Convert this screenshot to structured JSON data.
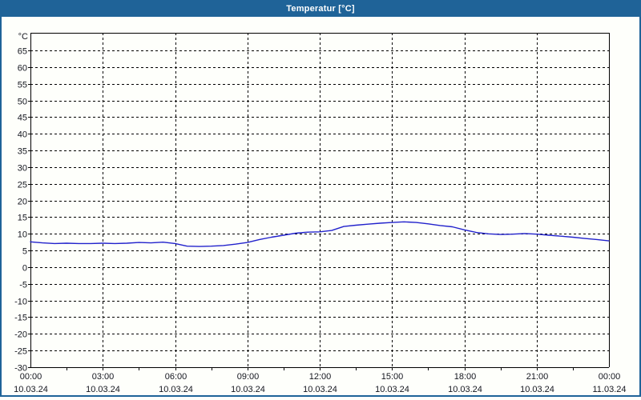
{
  "window": {
    "title": "Temperatur [°C]",
    "colors": {
      "titlebar": "#1F6398",
      "border": "#1F6398",
      "background": "#FEFFFB",
      "grid": "#000000",
      "axis": "#000000",
      "label": "#14161F",
      "line": "#2222CC"
    }
  },
  "chart_data": {
    "type": "line",
    "title": "Temperatur [°C]",
    "ylabel_unit": "°C",
    "ylim": [
      -30,
      70.3
    ],
    "y_tick_step": 5,
    "y_ticks": [
      65,
      60,
      55,
      50,
      45,
      40,
      35,
      30,
      25,
      20,
      15,
      10,
      5,
      0,
      -5,
      -10,
      -15,
      -20,
      -25,
      -30
    ],
    "x_hours_range": [
      0,
      24
    ],
    "x_minor_step_hours": 1.5,
    "grid": "dashed",
    "x_major_ticks": [
      {
        "hour": 0,
        "time": "00:00",
        "date": "10.03.24"
      },
      {
        "hour": 3,
        "time": "03:00",
        "date": "10.03.24"
      },
      {
        "hour": 6,
        "time": "06:00",
        "date": "10.03.24"
      },
      {
        "hour": 9,
        "time": "09:00",
        "date": "10.03.24"
      },
      {
        "hour": 12,
        "time": "12:00",
        "date": "10.03.24"
      },
      {
        "hour": 15,
        "time": "15:00",
        "date": "10.03.24"
      },
      {
        "hour": 18,
        "time": "18:00",
        "date": "10.03.24"
      },
      {
        "hour": 21,
        "time": "21:00",
        "date": "10.03.24"
      },
      {
        "hour": 24,
        "time": "00:00",
        "date": "11.03.24"
      }
    ],
    "series": [
      {
        "name": "Temperatur",
        "color": "#2222CC",
        "points": [
          [
            0.0,
            7.6
          ],
          [
            0.5,
            7.3
          ],
          [
            1.0,
            7.1
          ],
          [
            1.5,
            7.2
          ],
          [
            2.0,
            7.1
          ],
          [
            2.5,
            7.1
          ],
          [
            3.0,
            7.2
          ],
          [
            3.5,
            7.1
          ],
          [
            4.0,
            7.2
          ],
          [
            4.5,
            7.4
          ],
          [
            5.0,
            7.3
          ],
          [
            5.5,
            7.5
          ],
          [
            6.0,
            7.1
          ],
          [
            6.5,
            6.3
          ],
          [
            7.0,
            6.2
          ],
          [
            7.5,
            6.3
          ],
          [
            8.0,
            6.5
          ],
          [
            8.5,
            6.9
          ],
          [
            9.0,
            7.4
          ],
          [
            9.5,
            8.3
          ],
          [
            10.0,
            9.0
          ],
          [
            10.5,
            9.6
          ],
          [
            11.0,
            10.2
          ],
          [
            11.5,
            10.5
          ],
          [
            12.0,
            10.6
          ],
          [
            12.5,
            11.0
          ],
          [
            13.0,
            12.2
          ],
          [
            13.5,
            12.6
          ],
          [
            14.0,
            12.9
          ],
          [
            14.5,
            13.2
          ],
          [
            15.0,
            13.4
          ],
          [
            15.5,
            13.6
          ],
          [
            16.0,
            13.4
          ],
          [
            16.5,
            13.0
          ],
          [
            17.0,
            12.5
          ],
          [
            17.5,
            12.1
          ],
          [
            18.0,
            11.2
          ],
          [
            18.5,
            10.4
          ],
          [
            19.0,
            10.0
          ],
          [
            19.5,
            9.8
          ],
          [
            20.0,
            9.9
          ],
          [
            20.5,
            10.1
          ],
          [
            21.0,
            9.9
          ],
          [
            21.5,
            9.6
          ],
          [
            22.0,
            9.3
          ],
          [
            22.5,
            9.0
          ],
          [
            23.0,
            8.6
          ],
          [
            23.5,
            8.3
          ],
          [
            24.0,
            7.9
          ]
        ]
      }
    ]
  }
}
